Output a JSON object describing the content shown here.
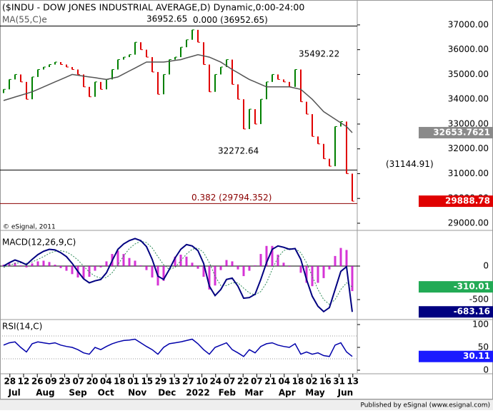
{
  "chart_data": [
    {
      "type": "price",
      "title": "($INDU - DOW JONES INDUSTRIAL AVERAGE,D) Dynamic,0:00-24:00",
      "copyright": "© eSignal, 2011",
      "ylim": [
        28740,
        37860
      ],
      "yticks": [
        {
          "value": 29000,
          "label": "29000.00"
        },
        {
          "value": 30000,
          "label": "30000.00"
        },
        {
          "value": 31000,
          "label": "31000.00"
        },
        {
          "value": 32000,
          "label": "32000.00"
        },
        {
          "value": 33000,
          "label": "33000.00"
        },
        {
          "value": 34000,
          "label": "34000.00"
        },
        {
          "value": 35000,
          "label": "35000.00"
        },
        {
          "value": 36000,
          "label": "36000.00"
        },
        {
          "value": 37000,
          "label": "37000.00"
        }
      ],
      "levels": [
        {
          "label": "0.000 (36952.65)",
          "value": 36952.65,
          "color": "#000000"
        },
        {
          "label": "(31144.91)",
          "value": 31144.91,
          "color": "#000000"
        },
        {
          "label": "0.382 (29794.352)",
          "value": 29794.352,
          "color": "#8b0000"
        }
      ],
      "annotations": [
        "36952.65",
        "35492.22",
        "32272.64"
      ],
      "series": [
        {
          "up_color": "#008000",
          "down_color": "#e00000",
          "label_color": "#e00000",
          "values": [
            34400,
            34800,
            35000,
            34700,
            34000,
            34900,
            35200,
            35300,
            35400,
            35500,
            35400,
            35300,
            35200,
            35000,
            34500,
            34100,
            34700,
            34400,
            34800,
            35200,
            35600,
            35700,
            35800,
            36300,
            36000,
            35700,
            35100,
            34200,
            35000,
            35600,
            35700,
            36100,
            36400,
            36800,
            36300,
            35400,
            34300,
            35000,
            35300,
            35600,
            34600,
            34000,
            32800,
            33600,
            33000,
            34000,
            34700,
            35000,
            34800,
            34700,
            34500,
            35200,
            33900,
            33400,
            32500,
            32200,
            31600,
            31300,
            32900,
            33100,
            31000,
            29888.78
          ]
        },
        {
          "name": "MA(55,C)e",
          "color": "#555555",
          "label_color": "#8a8a8a",
          "values": [
            33950,
            34020,
            34090,
            34160,
            34230,
            34300,
            34400,
            34500,
            34600,
            34700,
            34800,
            34900,
            35000,
            34970,
            34930,
            34900,
            34870,
            34830,
            34800,
            34850,
            34900,
            35020,
            35140,
            35260,
            35380,
            35500,
            35500,
            35500,
            35500,
            35530,
            35570,
            35600,
            35670,
            35730,
            35800,
            35750,
            35700,
            35600,
            35500,
            35350,
            35200,
            35070,
            34930,
            34800,
            34700,
            34600,
            34500,
            34500,
            34500,
            34500,
            34500,
            34450,
            34400,
            34200,
            34000,
            33750,
            33500,
            33350,
            33200,
            33050,
            32900,
            32653.7621
          ]
        }
      ]
    },
    {
      "type": "macd",
      "title": "MACD(12,26,9,C)",
      "ylim": [
        -787,
        489
      ],
      "yticks": [
        0,
        -500
      ],
      "series": [
        {
          "color": "#000080",
          "label_color": "#000080",
          "values": [
            0,
            50,
            90,
            60,
            20,
            100,
            170,
            220,
            250,
            240,
            200,
            140,
            40,
            -80,
            -190,
            -250,
            -220,
            -200,
            -100,
            80,
            250,
            330,
            380,
            410,
            380,
            290,
            100,
            -150,
            -200,
            -50,
            120,
            250,
            320,
            300,
            230,
            40,
            -300,
            -440,
            -350,
            -200,
            -180,
            -300,
            -480,
            -470,
            -420,
            -200,
            50,
            250,
            300,
            280,
            250,
            260,
            100,
            -200,
            -450,
            -600,
            -680,
            -620,
            -350,
            -80,
            -10,
            -683.16
          ]
        },
        {
          "color": "#2e8b57",
          "label_color": "#22aa55",
          "values": [
            -20,
            10,
            40,
            50,
            40,
            60,
            100,
            140,
            190,
            220,
            230,
            210,
            160,
            90,
            0,
            -90,
            -150,
            -180,
            -170,
            -100,
            20,
            150,
            260,
            330,
            370,
            350,
            270,
            140,
            20,
            -50,
            -20,
            80,
            180,
            250,
            270,
            200,
            50,
            -150,
            -290,
            -290,
            -250,
            -250,
            -330,
            -400,
            -430,
            -380,
            -250,
            -50,
            130,
            230,
            260,
            260,
            200,
            50,
            -150,
            -350,
            -500,
            -570,
            -500,
            -350,
            -250,
            -310.01
          ]
        },
        {
          "color": "#cc00cc",
          "values": [
            20,
            40,
            50,
            10,
            -20,
            40,
            70,
            80,
            60,
            20,
            -30,
            -70,
            -120,
            -170,
            -190,
            -160,
            -70,
            -20,
            70,
            180,
            230,
            180,
            120,
            80,
            10,
            -60,
            -170,
            -290,
            -220,
            0,
            140,
            170,
            140,
            50,
            -40,
            -160,
            -350,
            -290,
            -60,
            90,
            70,
            -50,
            -150,
            -70,
            10,
            180,
            300,
            300,
            170,
            50,
            -10,
            0,
            -100,
            -250,
            -300,
            -250,
            -180,
            -50,
            150,
            270,
            240,
            -373.15
          ]
        }
      ]
    },
    {
      "type": "rsi",
      "title": "RSI(14,C)",
      "ylim": [
        -6.25,
        109.4
      ],
      "yticks": [
        100,
        50,
        0
      ],
      "reference_lines": [
        75,
        25
      ],
      "series": [
        {
          "color": "#0000aa",
          "label_color": "#1a1aff",
          "values": [
            55,
            60,
            62,
            50,
            40,
            58,
            62,
            60,
            58,
            60,
            55,
            52,
            50,
            45,
            38,
            35,
            50,
            45,
            52,
            58,
            62,
            65,
            66,
            68,
            60,
            52,
            45,
            35,
            50,
            58,
            60,
            62,
            65,
            68,
            58,
            45,
            35,
            50,
            55,
            60,
            45,
            38,
            30,
            45,
            38,
            52,
            58,
            60,
            55,
            52,
            50,
            58,
            35,
            40,
            35,
            38,
            32,
            30,
            55,
            60,
            40,
            30.11
          ]
        }
      ]
    }
  ],
  "x_axis": {
    "xlim": [
      -0.625,
      61.875
    ],
    "xticks": [
      {
        "value": 1.1,
        "label": "28"
      },
      {
        "value": 3.5,
        "label": "12"
      },
      {
        "value": 5.9,
        "label": "26"
      },
      {
        "value": 8.3,
        "label": "09"
      },
      {
        "value": 10.7,
        "label": "23"
      },
      {
        "value": 13.1,
        "label": "07"
      },
      {
        "value": 15.5,
        "label": "20"
      },
      {
        "value": 17.9,
        "label": "04"
      },
      {
        "value": 20.3,
        "label": "18"
      },
      {
        "value": 22.7,
        "label": "01"
      },
      {
        "value": 25.1,
        "label": "15"
      },
      {
        "value": 27.5,
        "label": "29"
      },
      {
        "value": 29.9,
        "label": "13"
      },
      {
        "value": 32.3,
        "label": "27"
      },
      {
        "value": 34.7,
        "label": "10"
      },
      {
        "value": 37.1,
        "label": "24"
      },
      {
        "value": 39.5,
        "label": "07"
      },
      {
        "value": 41.9,
        "label": "22"
      },
      {
        "value": 44.3,
        "label": "07"
      },
      {
        "value": 46.7,
        "label": "21"
      },
      {
        "value": 49.1,
        "label": "04"
      },
      {
        "value": 51.5,
        "label": "18"
      },
      {
        "value": 53.9,
        "label": "02"
      },
      {
        "value": 56.3,
        "label": "16"
      },
      {
        "value": 58.7,
        "label": "31"
      },
      {
        "value": 61.1,
        "label": "13"
      }
    ],
    "months": [
      {
        "value": 1.9,
        "label": "Jul"
      },
      {
        "value": 7.3,
        "label": "Aug"
      },
      {
        "value": 13,
        "label": "Sep"
      },
      {
        "value": 17.9,
        "label": "Oct"
      },
      {
        "value": 23.4,
        "label": "Nov"
      },
      {
        "value": 28.6,
        "label": "Dec"
      },
      {
        "value": 34,
        "label": "2022"
      },
      {
        "value": 39.1,
        "label": "Feb"
      },
      {
        "value": 43.8,
        "label": "Mar"
      },
      {
        "value": 49.6,
        "label": "Apr"
      },
      {
        "value": 54.5,
        "label": "May"
      },
      {
        "value": 59.8,
        "label": "Jun"
      }
    ]
  },
  "footer": "Published by eSignal (www.esignal.com)"
}
